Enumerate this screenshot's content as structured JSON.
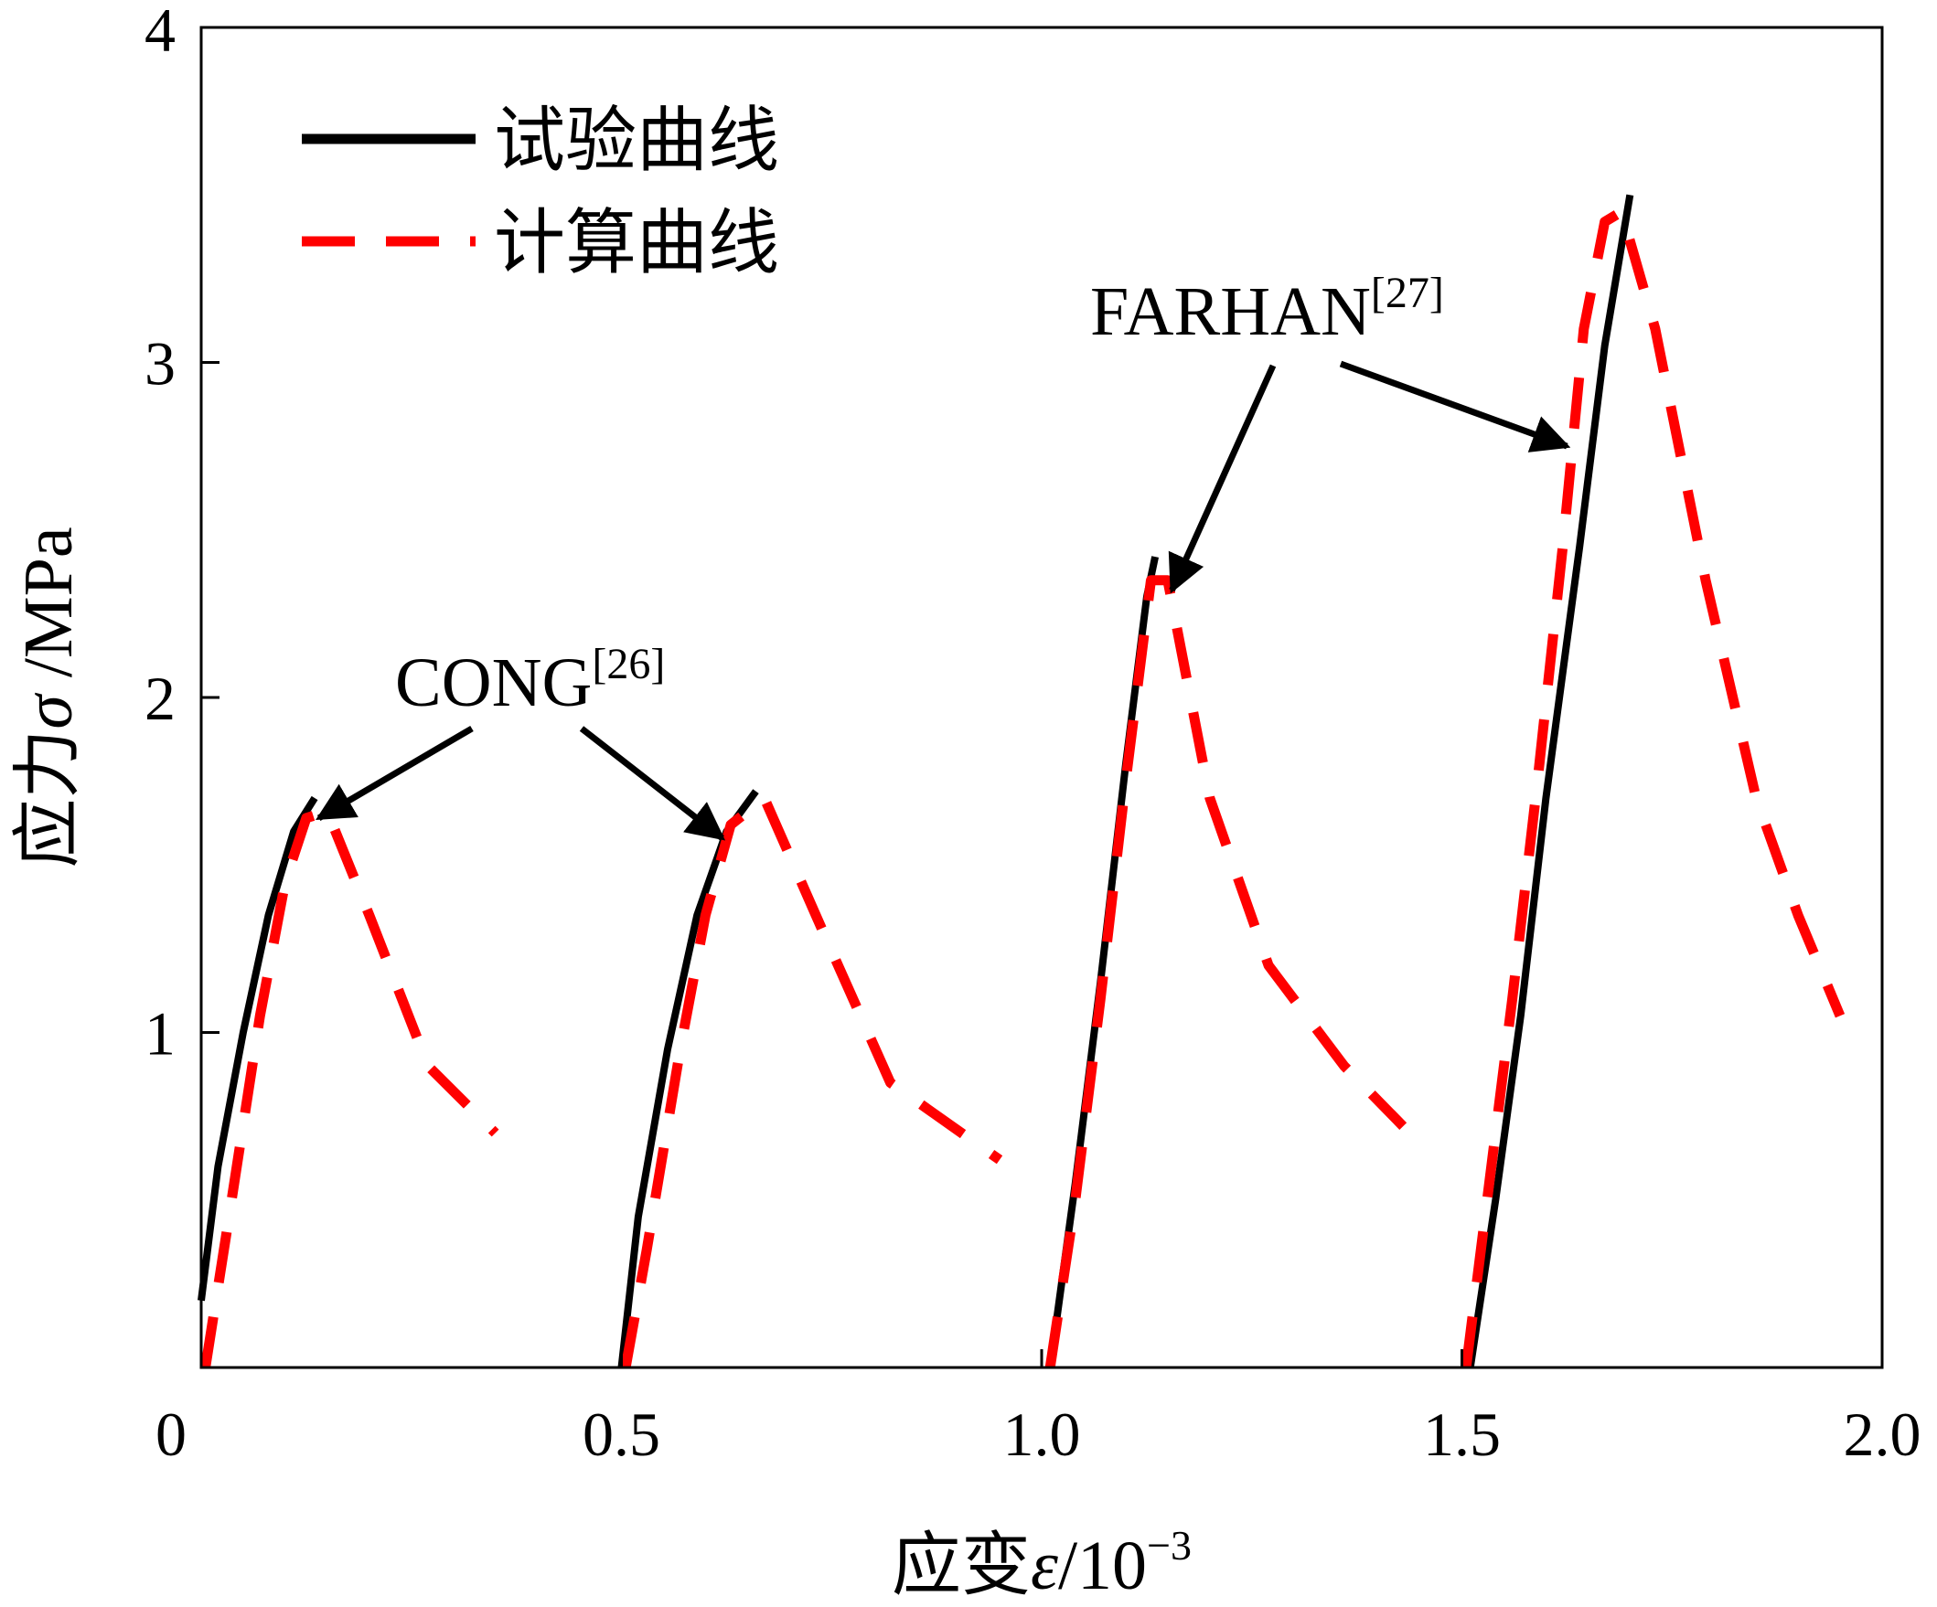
{
  "chart_data": {
    "type": "line",
    "xlabel_main": "应变",
    "xlabel_symbol": "ε",
    "xlabel_unit": "/10",
    "xlabel_exp": "−3",
    "ylabel_main": "应力",
    "ylabel_symbol": "σ",
    "ylabel_unit": " /MPa",
    "xlim": [
      0,
      2.0
    ],
    "ylim": [
      0,
      4
    ],
    "xticks": [
      {
        "value": 0,
        "label": "0"
      },
      {
        "value": 0.5,
        "label": "0.5"
      },
      {
        "value": 1.0,
        "label": "1.0"
      },
      {
        "value": 1.5,
        "label": "1.5"
      },
      {
        "value": 2.0,
        "label": "2.0"
      }
    ],
    "yticks": [
      {
        "value": 1,
        "label": "1"
      },
      {
        "value": 2,
        "label": "2"
      },
      {
        "value": 3,
        "label": "3"
      },
      {
        "value": 4,
        "label": "4"
      }
    ],
    "grid": false,
    "legend_position": "top-left",
    "legend": [
      {
        "label": "试验曲线",
        "color": "#000000",
        "style": "solid"
      },
      {
        "label": "计算曲线",
        "color": "#ff0000",
        "style": "dashed"
      }
    ],
    "series": [
      {
        "name": "试验曲线",
        "group": "CONG[26]",
        "color": "#000000",
        "style": "solid",
        "points": [
          [
            0.0,
            0.2
          ],
          [
            0.02,
            0.6
          ],
          [
            0.05,
            1.0
          ],
          [
            0.08,
            1.35
          ],
          [
            0.11,
            1.6
          ],
          [
            0.135,
            1.7
          ]
        ]
      },
      {
        "name": "计算曲线",
        "group": "CONG[26]",
        "color": "#ff0000",
        "style": "dashed",
        "points": [
          [
            0.005,
            0.0
          ],
          [
            0.03,
            0.4
          ],
          [
            0.07,
            1.05
          ],
          [
            0.1,
            1.45
          ],
          [
            0.125,
            1.64
          ],
          [
            0.15,
            1.66
          ],
          [
            0.2,
            1.35
          ],
          [
            0.27,
            0.9
          ],
          [
            0.35,
            0.7
          ]
        ]
      },
      {
        "name": "试验曲线",
        "group": "CONG[26]",
        "color": "#000000",
        "style": "solid",
        "points": [
          [
            0.5,
            0.0
          ],
          [
            0.52,
            0.45
          ],
          [
            0.555,
            0.95
          ],
          [
            0.59,
            1.35
          ],
          [
            0.625,
            1.6
          ],
          [
            0.66,
            1.72
          ]
        ]
      },
      {
        "name": "计算曲线",
        "group": "CONG[26]",
        "color": "#ff0000",
        "style": "dashed",
        "points": [
          [
            0.505,
            0.0
          ],
          [
            0.53,
            0.35
          ],
          [
            0.57,
            0.95
          ],
          [
            0.6,
            1.35
          ],
          [
            0.63,
            1.62
          ],
          [
            0.67,
            1.7
          ],
          [
            0.74,
            1.3
          ],
          [
            0.82,
            0.85
          ],
          [
            0.95,
            0.62
          ]
        ]
      },
      {
        "name": "试验曲线",
        "group": "FARHAN[27]",
        "color": "#000000",
        "style": "solid",
        "points": [
          [
            1.01,
            0.0
          ],
          [
            1.04,
            0.55
          ],
          [
            1.07,
            1.15
          ],
          [
            1.1,
            1.8
          ],
          [
            1.125,
            2.3
          ],
          [
            1.135,
            2.42
          ]
        ]
      },
      {
        "name": "计算曲线",
        "group": "FARHAN[27]",
        "color": "#ff0000",
        "style": "dashed",
        "points": [
          [
            1.01,
            0.0
          ],
          [
            1.04,
            0.5
          ],
          [
            1.07,
            1.1
          ],
          [
            1.1,
            1.75
          ],
          [
            1.13,
            2.35
          ],
          [
            1.15,
            2.35
          ],
          [
            1.2,
            1.7
          ],
          [
            1.27,
            1.2
          ],
          [
            1.36,
            0.9
          ],
          [
            1.43,
            0.72
          ]
        ]
      },
      {
        "name": "试验曲线",
        "group": "FARHAN[27]",
        "color": "#000000",
        "style": "solid",
        "points": [
          [
            1.51,
            0.0
          ],
          [
            1.54,
            0.5
          ],
          [
            1.57,
            1.05
          ],
          [
            1.6,
            1.7
          ],
          [
            1.64,
            2.45
          ],
          [
            1.67,
            3.05
          ],
          [
            1.7,
            3.5
          ]
        ]
      },
      {
        "name": "计算曲线",
        "group": "FARHAN[27]",
        "color": "#ff0000",
        "style": "dashed",
        "points": [
          [
            1.505,
            0.0
          ],
          [
            1.53,
            0.5
          ],
          [
            1.56,
            1.1
          ],
          [
            1.59,
            1.75
          ],
          [
            1.62,
            2.45
          ],
          [
            1.645,
            3.1
          ],
          [
            1.67,
            3.42
          ],
          [
            1.69,
            3.45
          ],
          [
            1.73,
            3.1
          ],
          [
            1.79,
            2.35
          ],
          [
            1.85,
            1.7
          ],
          [
            1.9,
            1.35
          ],
          [
            1.95,
            1.05
          ]
        ]
      }
    ],
    "annotations": [
      {
        "text": "CONG",
        "sup": "[26]",
        "arrows": [
          [
            0.14,
            1.64
          ],
          [
            0.62,
            1.58
          ]
        ]
      },
      {
        "text": "FARHAN",
        "sup": "[27]",
        "arrows": [
          [
            1.155,
            2.32
          ],
          [
            1.625,
            2.75
          ]
        ]
      }
    ]
  }
}
